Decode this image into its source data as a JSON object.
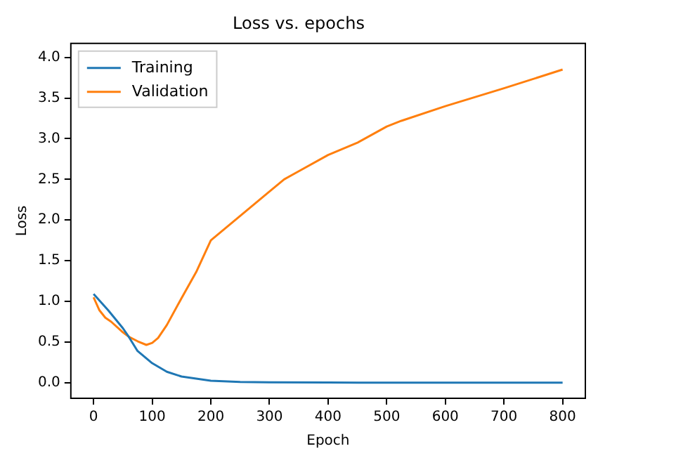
{
  "chart_data": {
    "type": "line",
    "title": "Loss vs. epochs",
    "xlabel": "Epoch",
    "ylabel": "Loss",
    "xlim": [
      -40,
      840
    ],
    "xticks": [
      0,
      100,
      200,
      300,
      400,
      500,
      600,
      700,
      800
    ],
    "ylim": [
      -0.2,
      4.18
    ],
    "yticks": [
      {
        "value": 0,
        "label": "0.0"
      },
      {
        "value": 0.5,
        "label": "0.5"
      },
      {
        "value": 1,
        "label": "1.0"
      },
      {
        "value": 1.5,
        "label": "1.5"
      },
      {
        "value": 2,
        "label": "2.0"
      },
      {
        "value": 2.5,
        "label": "2.5"
      },
      {
        "value": 3,
        "label": "3.0"
      },
      {
        "value": 3.5,
        "label": "3.5"
      },
      {
        "value": 4,
        "label": "4.0"
      }
    ],
    "grid": false,
    "legend": "top left",
    "marker": "none",
    "line_style": "solid",
    "series": [
      {
        "name": "Training",
        "color": "#1f77b4",
        "x": [
          0,
          25,
          50,
          60,
          75,
          100,
          125,
          150,
          200,
          250,
          300,
          400,
          500,
          600,
          700,
          800
        ],
        "values": [
          1.09,
          0.89,
          0.67,
          0.565,
          0.39,
          0.24,
          0.135,
          0.076,
          0.024,
          0.01,
          0.005,
          0.002,
          0.001,
          0.001,
          0.001,
          0.001
        ]
      },
      {
        "name": "Validation",
        "color": "#ff7f0e",
        "x": [
          0,
          10,
          20,
          30,
          50,
          60,
          75,
          90,
          100,
          110,
          125,
          150,
          175,
          200,
          250,
          300,
          325,
          350,
          400,
          450,
          500,
          525,
          600,
          700,
          800
        ],
        "values": [
          1.05,
          0.89,
          0.8,
          0.75,
          0.62,
          0.565,
          0.51,
          0.465,
          0.49,
          0.55,
          0.71,
          1.04,
          1.36,
          1.75,
          2.05,
          2.35,
          2.5,
          2.6,
          2.8,
          2.95,
          3.15,
          3.22,
          3.4,
          3.62,
          3.85
        ]
      }
    ]
  }
}
